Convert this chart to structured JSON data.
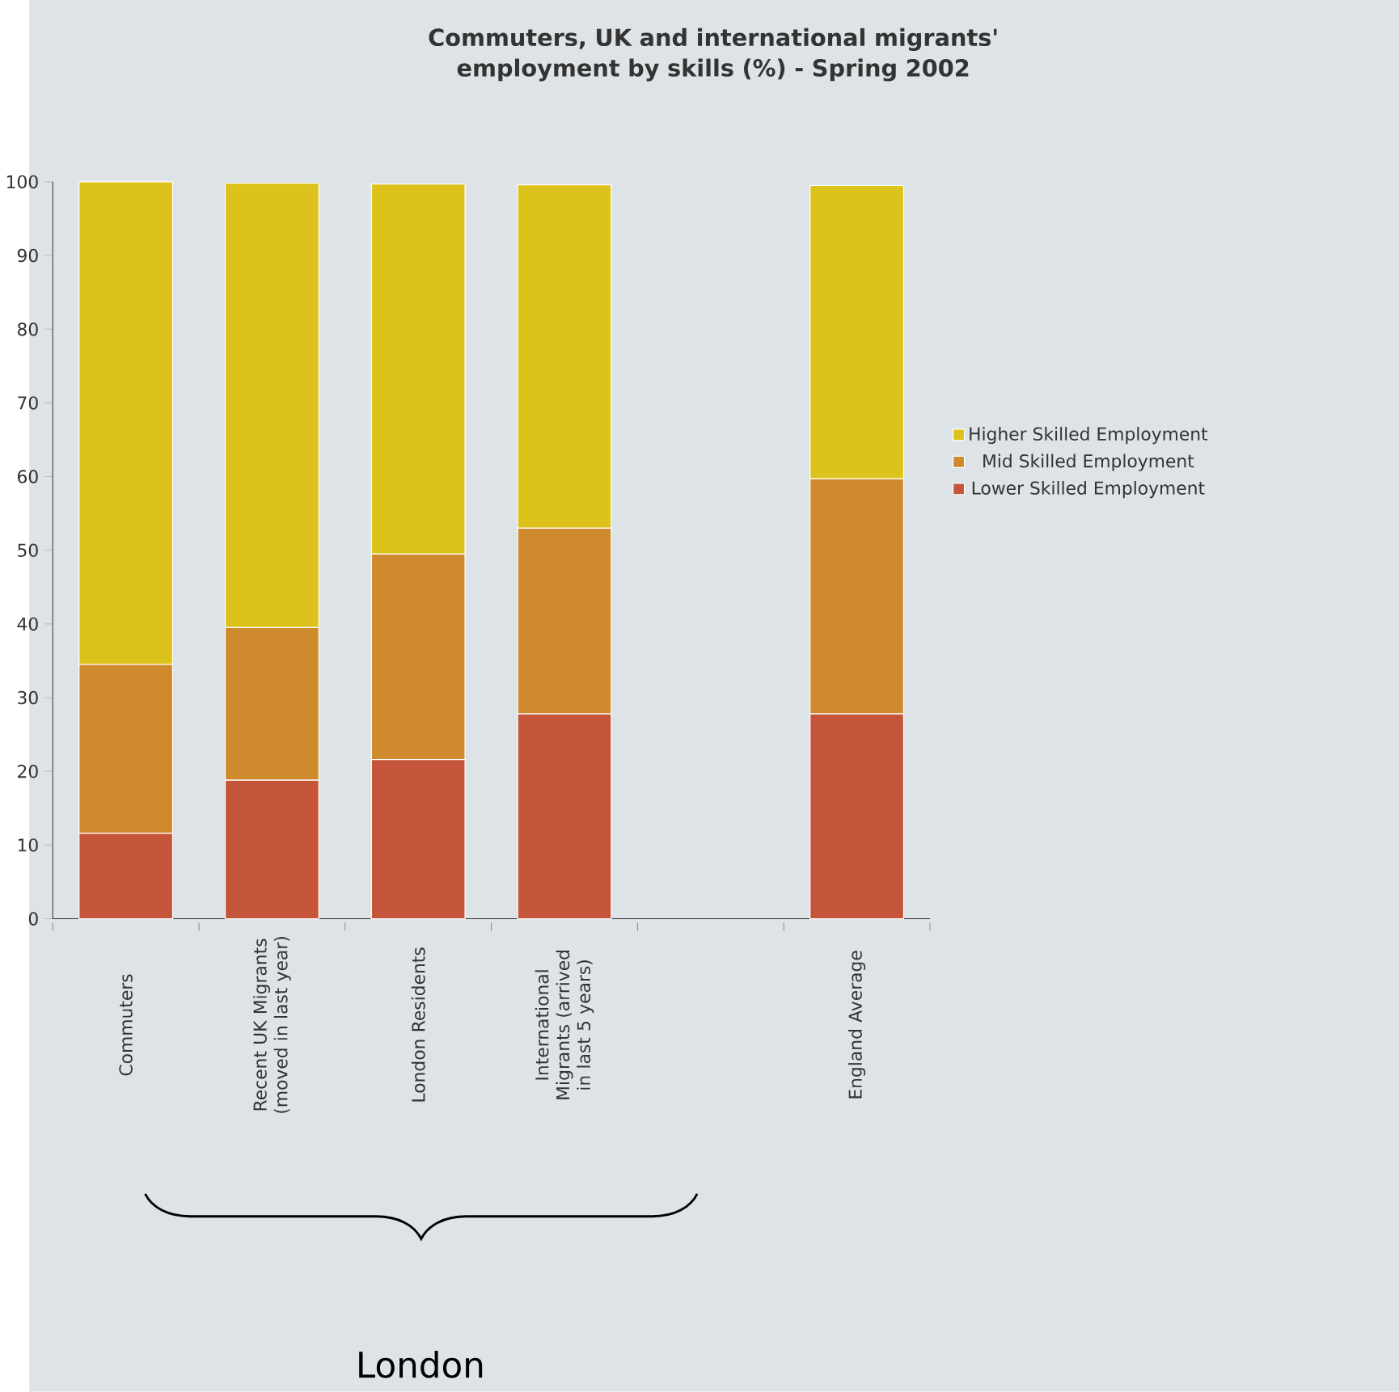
{
  "chart_data": {
    "type": "bar",
    "title": "Commuters, UK and international migrants' employment by skills (%) - Spring 2002",
    "categories": [
      "Commuters",
      "Recent UK Migrants (moved in last year)",
      "London Residents",
      "International Migrants (arrived in last 5 years)",
      null,
      "England Average"
    ],
    "series": [
      {
        "name": "Lower Skilled Employment",
        "color": "#c4553a",
        "values": [
          11.6,
          18.8,
          21.6,
          27.8,
          null,
          27.8
        ]
      },
      {
        "name": "Mid Skilled Employment",
        "color": "#d08a2e",
        "values": [
          22.9,
          20.7,
          27.9,
          25.2,
          null,
          31.9
        ]
      },
      {
        "name": "Higher Skilled Employment",
        "color": "#dcc21a",
        "values": [
          65.5,
          60.3,
          50.2,
          46.6,
          null,
          39.8
        ]
      }
    ],
    "stacked": true,
    "ylim": [
      0,
      100
    ],
    "yticks": [
      0,
      10,
      20,
      30,
      40,
      50,
      60,
      70,
      80,
      90,
      100
    ],
    "legend": "right",
    "grid": false,
    "annotations": [
      "London"
    ]
  }
}
